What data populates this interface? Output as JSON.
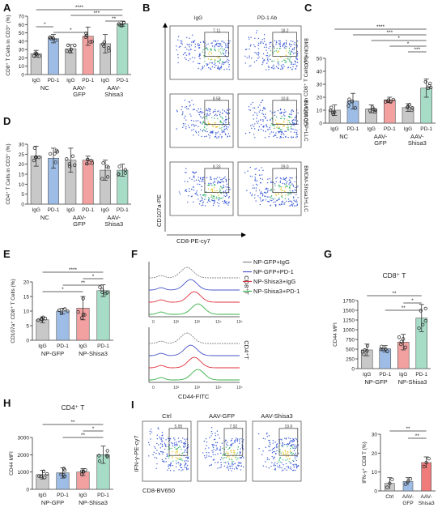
{
  "panels": {
    "A": {
      "letter": "A",
      "ylabel": "CD8⁺ T Cells in CD3⁺ (%)",
      "yticks": [
        "0",
        "10",
        "20",
        "30",
        "40",
        "50",
        "60",
        "70"
      ],
      "ymax": 70,
      "groups": [
        "NC",
        "AAV-\nGFP",
        "AAV-\nShisa3"
      ],
      "bars": [
        "IgG",
        "PD-1",
        "IgG",
        "PD-1",
        "IgG",
        "PD-1"
      ],
      "means": [
        25,
        43,
        31,
        46,
        37,
        61
      ],
      "sd": [
        4,
        5,
        5,
        11,
        11,
        3
      ],
      "sigs": [
        {
          "a": 0,
          "b": 5,
          "t": "****"
        },
        {
          "a": 2,
          "b": 5,
          "t": "***"
        },
        {
          "a": 4,
          "b": 5,
          "t": "**"
        },
        {
          "a": 0,
          "b": 1,
          "t": "*"
        },
        {
          "a": 1,
          "b": 3,
          "t": "*"
        }
      ]
    },
    "B": {
      "letter": "B",
      "col_labels": [
        "IgG",
        "PD-1 Ab"
      ],
      "row_labels": [
        "BMDM+LLC",
        "BMDM-GFP+LLC",
        "BMDM-Shisa3+LLC"
      ],
      "gate_values": [
        "7.11",
        "18.2",
        "8.58",
        "10.8",
        "8.33",
        "29.0"
      ],
      "ylabel": "CD107a-PE",
      "xlabel": "CD8-PE-cy7"
    },
    "C": {
      "letter": "C",
      "ylabel": "CD107a⁺ in CD8⁺ T Cells (%)",
      "yticks": [
        "0",
        "10",
        "20",
        "30",
        "40",
        "50"
      ],
      "ymax": 50,
      "groups": [
        "NC",
        "AAV-\nGFP",
        "AAV-\nShisa3"
      ],
      "bars": [
        "IgG",
        "PD-1",
        "IgG",
        "PD-1",
        "IgG",
        "PD-1"
      ],
      "means": [
        10,
        17,
        11,
        18,
        12,
        27
      ],
      "sd": [
        4,
        6,
        3,
        2,
        3,
        7
      ],
      "sigs": [
        {
          "a": 0,
          "b": 5,
          "t": "****"
        },
        {
          "a": 1,
          "b": 5,
          "t": "***"
        },
        {
          "a": 2,
          "b": 5,
          "t": "*"
        },
        {
          "a": 3,
          "b": 5,
          "t": "*"
        },
        {
          "a": 4,
          "b": 5,
          "t": "***"
        }
      ]
    },
    "D": {
      "letter": "D",
      "ylabel": "CD4⁺ T Cells in CD3⁺ (%)",
      "yticks": [
        "0",
        "5",
        "10",
        "15",
        "20",
        "25",
        "30"
      ],
      "ymax": 30,
      "groups": [
        "NC",
        "AAV-\nGFP",
        "AAV-\nShisa3"
      ],
      "bars": [
        "IgG",
        "PD-1",
        "IgG",
        "PD-1",
        "IgG",
        "PD-1"
      ],
      "means": [
        24,
        23,
        22,
        22,
        17,
        17
      ],
      "sd": [
        5,
        5,
        6,
        2,
        5,
        3
      ],
      "sigs": []
    },
    "E": {
      "letter": "E",
      "ylabel": "CD107a⁺ CD8⁺ T Cells (%)",
      "yticks": [
        "0",
        "5",
        "10",
        "15",
        "20"
      ],
      "ymax": 20,
      "groups": [
        "NP-GFP",
        "NP-Shisa3"
      ],
      "bars": [
        "IgG",
        "PD-1",
        "IgG",
        "PD-1"
      ],
      "means": [
        7,
        10,
        11,
        17
      ],
      "sd": [
        1,
        1,
        4,
        2
      ],
      "sigs": [
        {
          "a": 0,
          "b": 3,
          "t": "****"
        },
        {
          "a": 2,
          "b": 3,
          "t": "*"
        },
        {
          "a": 1,
          "b": 3,
          "t": "**"
        },
        {
          "a": 0,
          "b": 2,
          "t": "*"
        }
      ]
    },
    "F": {
      "letter": "F",
      "legend": [
        "NP-GFP+IgG",
        "NP-GFP+PD-1",
        "NP-Shisa3+IgG",
        "NP-Shisa3+PD-1"
      ],
      "legend_colors": [
        "#888888",
        "#4a57c9",
        "#e0323e",
        "#38b24a"
      ],
      "row_labels": [
        "CD8⁺T",
        "CD4⁺T"
      ],
      "xlabel": "CD44-FITC",
      "ticks": [
        "0",
        "10²",
        "10³",
        "10⁴",
        "10⁵"
      ]
    },
    "G": {
      "letter": "G",
      "title": "CD8⁺ T",
      "ylabel": "CD44 MFI",
      "yticks": [
        "0",
        "250",
        "500",
        "750",
        "1000",
        "1250",
        "1500",
        "1750"
      ],
      "ymax": 1750,
      "groups": [
        "NP-GFP",
        "NP-Shisa3"
      ],
      "bars": [
        "IgG",
        "PD-1",
        "IgG",
        "PD-1"
      ],
      "means": [
        480,
        510,
        680,
        1300
      ],
      "sd": [
        150,
        80,
        200,
        350
      ],
      "sigs": [
        {
          "a": 0,
          "b": 3,
          "t": "**"
        },
        {
          "a": 2,
          "b": 3,
          "t": "*"
        },
        {
          "a": 1,
          "b": 3,
          "t": "**"
        }
      ]
    },
    "H": {
      "letter": "H",
      "title": "CD4⁺ T",
      "ylabel": "CD44 MFI",
      "yticks": [
        "0",
        "1000",
        "2000",
        "3000"
      ],
      "ymax": 3000,
      "groups": [
        "NP-GFP",
        "NP-Shisa3"
      ],
      "bars": [
        "IgG",
        "PD-1",
        "IgG",
        "PD-1"
      ],
      "means": [
        850,
        950,
        1000,
        2000
      ],
      "sd": [
        250,
        300,
        200,
        500
      ],
      "sigs": [
        {
          "a": 0,
          "b": 3,
          "t": "**"
        },
        {
          "a": 2,
          "b": 3,
          "t": "*"
        },
        {
          "a": 1,
          "b": 3,
          "t": "**"
        }
      ]
    },
    "I": {
      "letter": "I",
      "col_labels": [
        "Ctrl",
        "AAV-GFP",
        "AAV-Shisa3"
      ],
      "gate_values": [
        "5.95",
        "7.92",
        "19.6"
      ],
      "ylabel": "IFN-γ-PE-cy7",
      "xlabel": "CD8-BV650",
      "bar_ylabel": "IFN-γ⁺ CD8 T (%)",
      "bar_yticks": [
        "0",
        "10",
        "20",
        "30"
      ],
      "bar_ymax": 30,
      "bar_labels": [
        "Ctrl",
        "AAV-\nGFP",
        "AAV-\nShisa3"
      ],
      "bar_means": [
        4,
        5,
        15
      ],
      "bar_sd": [
        3,
        2,
        3
      ],
      "bar_sigs": [
        {
          "a": 0,
          "b": 2,
          "t": "**"
        },
        {
          "a": 1,
          "b": 2,
          "t": "**"
        }
      ]
    }
  },
  "colors": {
    "IgG": "#c8c8c8",
    "PD1": "#9ebde6",
    "IgG_rose": "#f2a0a0",
    "PD1_green": "#a7dcc6",
    "dots": "#222222",
    "ctrl": "#c8c8c8",
    "gfp": "#9ebde6",
    "shisa": "#ef7b7b"
  }
}
